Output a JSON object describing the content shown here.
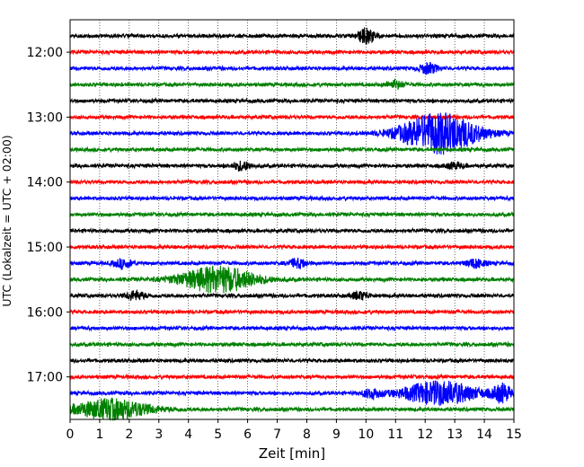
{
  "chart_data": {
    "type": "line",
    "title": "",
    "xlabel": "Zeit  [min]",
    "ylabel": "UTC (Lokalzeit = UTC + 02:00)",
    "xlim": [
      0,
      15
    ],
    "x_ticks": [
      "0",
      "1",
      "2",
      "3",
      "4",
      "5",
      "6",
      "7",
      "8",
      "9",
      "10",
      "11",
      "12",
      "13",
      "14",
      "15"
    ],
    "y_tick_labels": [
      "12:00",
      "13:00",
      "14:00",
      "15:00",
      "16:00",
      "17:00"
    ],
    "grid": "vertical-dotted",
    "trace_interval_minutes": 15,
    "colors": [
      "#000000",
      "#ff0000",
      "#0000ff",
      "#008000"
    ],
    "series": [
      {
        "start": "11:45",
        "color": "#000000",
        "events": [
          {
            "t": 10.0,
            "amp": 1.0
          }
        ]
      },
      {
        "start": "12:00",
        "color": "#ff0000",
        "events": []
      },
      {
        "start": "12:15",
        "color": "#0000ff",
        "events": [
          {
            "t": 12.1,
            "amp": 0.7
          }
        ]
      },
      {
        "start": "12:30",
        "color": "#008000",
        "events": [
          {
            "t": 11.0,
            "amp": 0.5
          }
        ]
      },
      {
        "start": "12:45",
        "color": "#000000",
        "events": []
      },
      {
        "start": "13:00",
        "color": "#ff0000",
        "events": []
      },
      {
        "start": "13:15",
        "color": "#0000ff",
        "events": [
          {
            "t": 12.5,
            "amp": 2.8
          }
        ]
      },
      {
        "start": "13:30",
        "color": "#008000",
        "events": []
      },
      {
        "start": "13:45",
        "color": "#000000",
        "events": [
          {
            "t": 5.8,
            "amp": 0.6
          },
          {
            "t": 13.0,
            "amp": 0.4
          }
        ]
      },
      {
        "start": "14:00",
        "color": "#ff0000",
        "events": []
      },
      {
        "start": "14:15",
        "color": "#0000ff",
        "events": []
      },
      {
        "start": "14:30",
        "color": "#008000",
        "events": []
      },
      {
        "start": "14:45",
        "color": "#000000",
        "events": []
      },
      {
        "start": "15:00",
        "color": "#ff0000",
        "events": []
      },
      {
        "start": "15:15",
        "color": "#0000ff",
        "events": [
          {
            "t": 1.8,
            "amp": 0.6
          },
          {
            "t": 7.7,
            "amp": 0.6
          },
          {
            "t": 13.7,
            "amp": 0.6
          }
        ]
      },
      {
        "start": "15:30",
        "color": "#008000",
        "events": [
          {
            "t": 5.0,
            "amp": 1.8
          }
        ]
      },
      {
        "start": "15:45",
        "color": "#000000",
        "events": [
          {
            "t": 2.2,
            "amp": 0.6
          },
          {
            "t": 9.8,
            "amp": 0.5
          }
        ]
      },
      {
        "start": "16:00",
        "color": "#ff0000",
        "events": []
      },
      {
        "start": "16:15",
        "color": "#0000ff",
        "events": []
      },
      {
        "start": "16:30",
        "color": "#008000",
        "events": []
      },
      {
        "start": "16:45",
        "color": "#000000",
        "events": []
      },
      {
        "start": "17:00",
        "color": "#ff0000",
        "events": []
      },
      {
        "start": "17:15",
        "color": "#0000ff",
        "events": [
          {
            "t": 10.2,
            "amp": 0.6
          },
          {
            "t": 12.5,
            "amp": 1.6
          },
          {
            "t": 14.6,
            "amp": 1.2
          }
        ]
      },
      {
        "start": "17:30",
        "color": "#008000",
        "events": [
          {
            "t": 1.4,
            "amp": 1.4
          }
        ]
      }
    ]
  }
}
